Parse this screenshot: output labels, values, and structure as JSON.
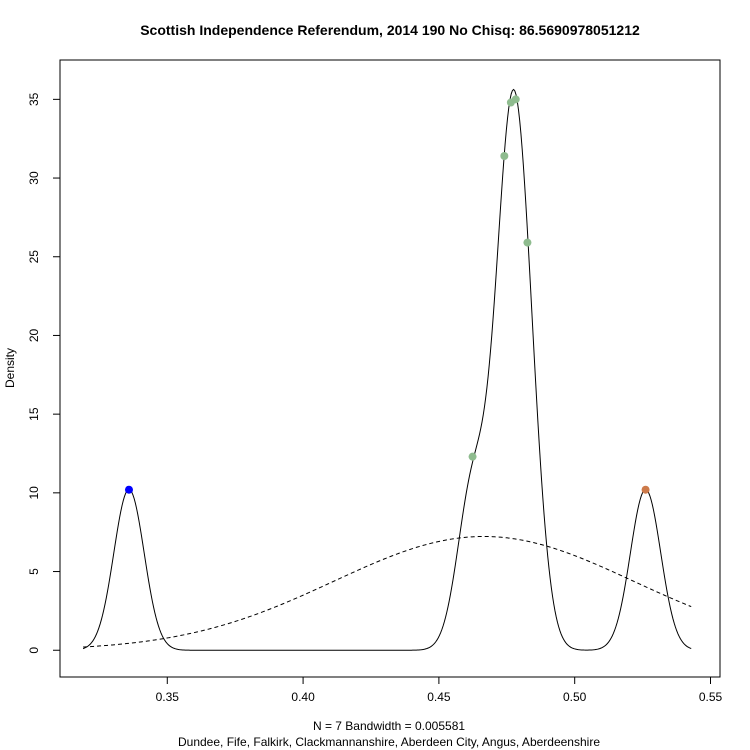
{
  "chart_data": {
    "type": "line",
    "title": "Scottish Independence Referendum, 2014 190 No Chisq: 86.5690978051212",
    "ylabel": "Density",
    "xlabel_line1": "N = 7   Bandwidth = 0.005581",
    "xlabel_line2": "Dundee, Fife, Falkirk, Clackmannanshire, Aberdeen City, Angus, Aberdeenshire",
    "xlim": [
      0.3105,
      0.5535
    ],
    "ylim": [
      -1.7,
      37.5
    ],
    "x_ticks": [
      0.35,
      0.4,
      0.45,
      0.5,
      0.55
    ],
    "x_tick_labels": [
      "0.35",
      "0.40",
      "0.45",
      "0.50",
      "0.55"
    ],
    "y_ticks": [
      0,
      5,
      10,
      15,
      20,
      25,
      30,
      35
    ],
    "y_tick_labels": [
      "0",
      "5",
      "10",
      "15",
      "20",
      "25",
      "30",
      "35"
    ],
    "grid": false,
    "series": [
      {
        "style": "solid",
        "color": "#000000",
        "kde_samples": [
          0.3359,
          0.4624,
          0.4741,
          0.4765,
          0.4783,
          0.4826,
          0.5261
        ],
        "bandwidth": 0.005581,
        "x_range": [
          0.319,
          0.5429
        ]
      },
      {
        "style": "dashed",
        "color": "#000000",
        "normal_mean": 0.4665,
        "normal_sd": 0.0552,
        "x_range": [
          0.319,
          0.5429
        ]
      }
    ],
    "points": [
      {
        "x": 0.3359,
        "y": 10.2,
        "color": "#0000ff"
      },
      {
        "x": 0.4624,
        "y": 12.3,
        "color": "#8fbc8f"
      },
      {
        "x": 0.4741,
        "y": 31.4,
        "color": "#8fbc8f"
      },
      {
        "x": 0.4765,
        "y": 34.8,
        "color": "#8fbc8f"
      },
      {
        "x": 0.4783,
        "y": 35.0,
        "color": "#8fbc8f"
      },
      {
        "x": 0.4826,
        "y": 25.9,
        "color": "#8fbc8f"
      },
      {
        "x": 0.5261,
        "y": 10.2,
        "color": "#cd7a4a"
      }
    ]
  }
}
